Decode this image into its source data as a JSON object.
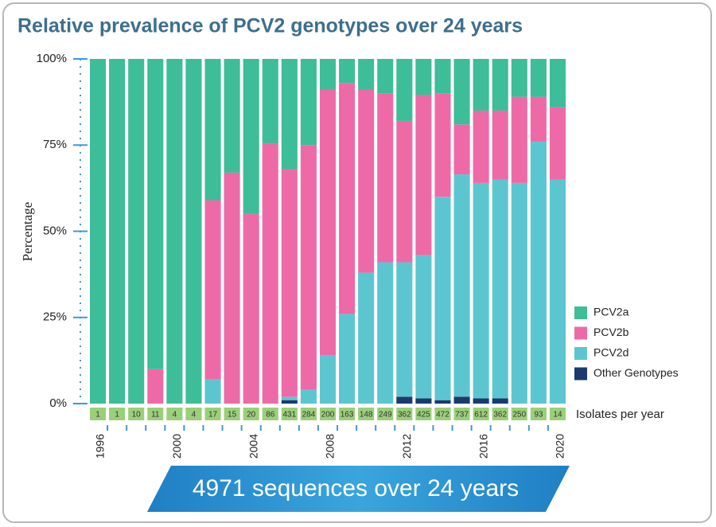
{
  "chart_data": {
    "type": "stacked-bar",
    "title": "Relative prevalence of PCV2 genotypes over 24 years",
    "y_label": "Percentage",
    "categories": [
      "1996",
      null,
      null,
      null,
      "2000",
      null,
      null,
      null,
      "2004",
      null,
      null,
      null,
      "2008",
      null,
      null,
      null,
      "2012",
      null,
      null,
      null,
      "2016",
      null,
      null,
      null,
      "2020"
    ],
    "series": [
      {
        "name": "PCV2a",
        "color": "#3dbd98",
        "values": [
          100,
          100,
          100,
          90,
          100,
          100,
          41,
          33,
          45,
          24.5,
          32,
          25,
          9,
          7,
          9,
          10,
          18,
          10.5,
          10,
          19,
          15,
          15,
          11,
          11,
          14
        ]
      },
      {
        "name": "PCV2b",
        "color": "#ee6aa7",
        "values": [
          0,
          0,
          0,
          10,
          0,
          0,
          52,
          67,
          55,
          75.5,
          66,
          71,
          77,
          67,
          53,
          49,
          41,
          46.5,
          30,
          14.5,
          21,
          20,
          25,
          13,
          21
        ]
      },
      {
        "name": "PCV2d",
        "color": "#5cc6d0",
        "values": [
          0,
          0,
          0,
          0,
          0,
          0,
          7,
          0,
          0,
          0,
          1,
          4,
          14,
          26,
          38,
          41,
          39,
          41.5,
          59,
          64.5,
          62.5,
          63.5,
          64,
          76,
          65
        ]
      },
      {
        "name": "Other Genotypes",
        "color": "#1c3a6b",
        "values": [
          0,
          0,
          0,
          0,
          0,
          0,
          0,
          0,
          0,
          0,
          1,
          0,
          0,
          0,
          0,
          0,
          2,
          1.5,
          1,
          2,
          1.5,
          1.5,
          0,
          0,
          0
        ]
      }
    ],
    "ylim": [
      0,
      100
    ],
    "yticks": [
      {
        "value": 0,
        "label": "0%"
      },
      {
        "value": 25,
        "label": "25%"
      },
      {
        "value": 50,
        "label": "50%"
      },
      {
        "value": 75,
        "label": "75%"
      },
      {
        "value": 100,
        "label": "100%"
      }
    ],
    "isolates": {
      "label": "Isolates per year",
      "values": [
        1,
        1,
        10,
        11,
        4,
        4,
        17,
        15,
        20,
        86,
        431,
        284,
        200,
        163,
        148,
        249,
        362,
        425,
        472,
        737,
        612,
        362,
        250,
        93,
        14
      ]
    },
    "banner": "4971 sequences over 24 years"
  }
}
